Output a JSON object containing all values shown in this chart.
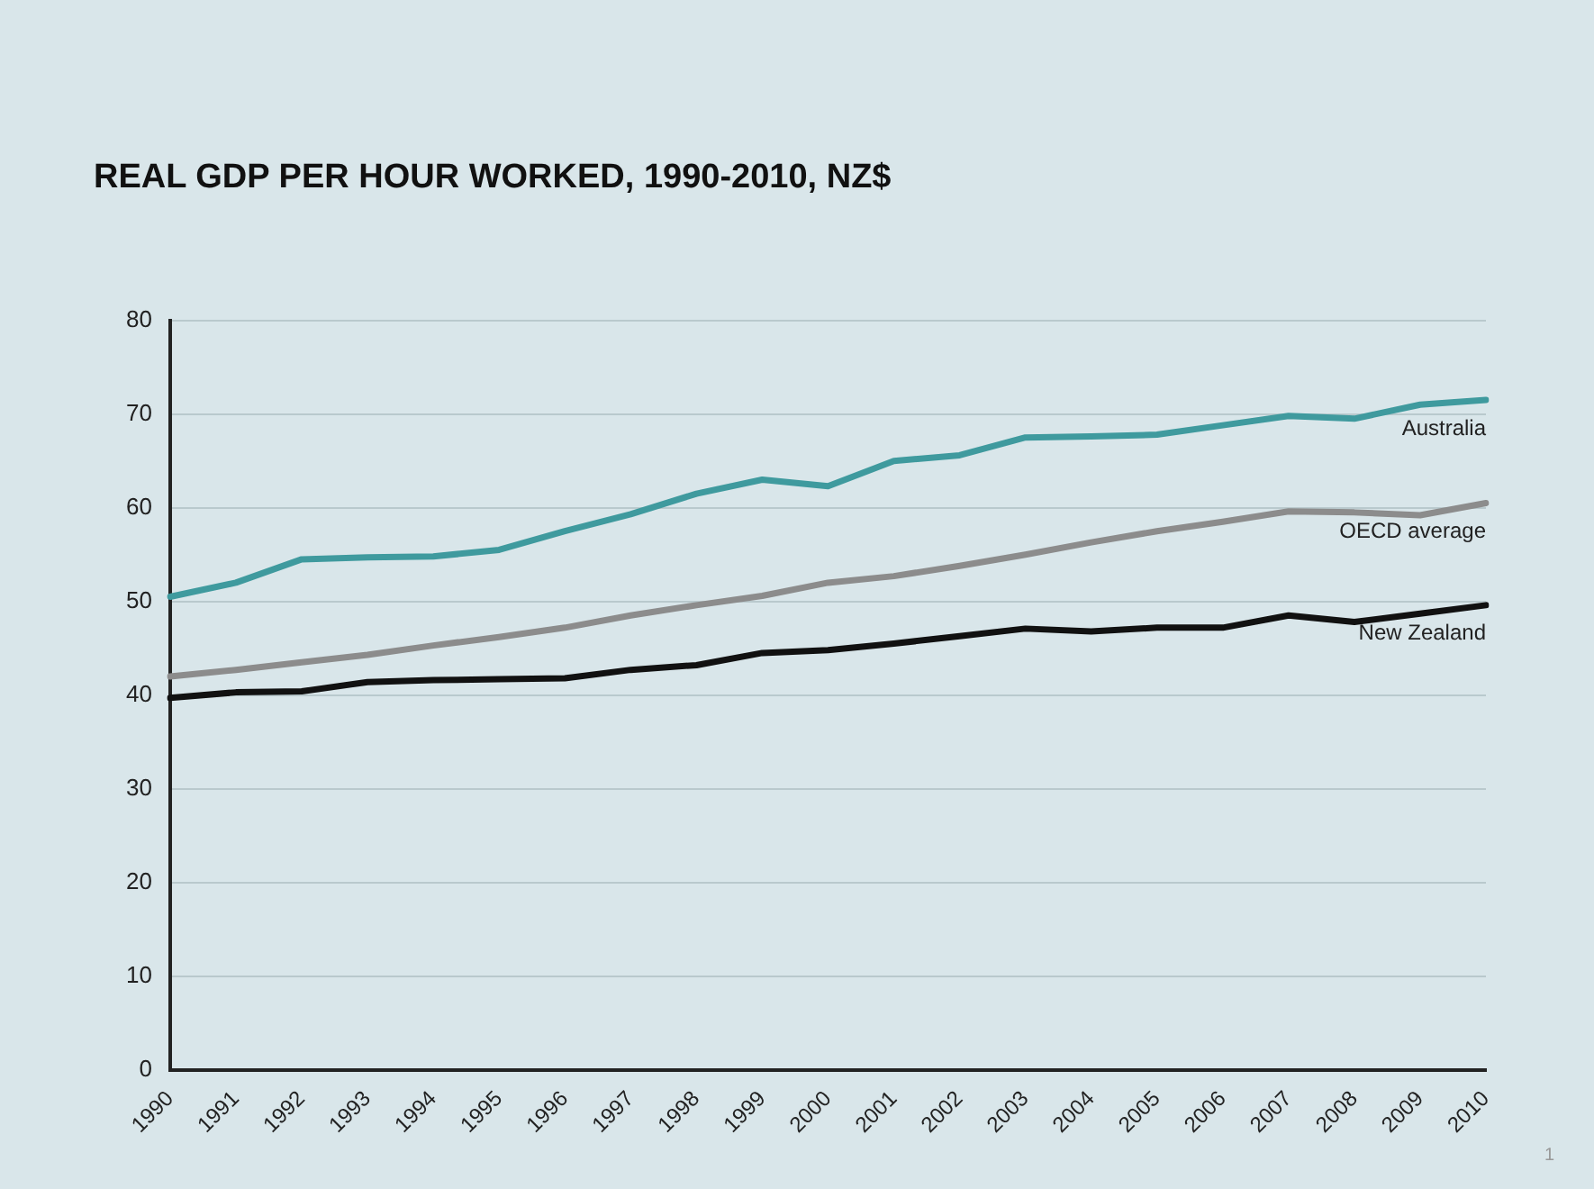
{
  "chart_data": {
    "type": "line",
    "title": "REAL GDP PER HOUR WORKED, 1990-2010, NZ$",
    "categories": [
      "1990",
      "1991",
      "1992",
      "1993",
      "1994",
      "1995",
      "1996",
      "1997",
      "1998",
      "1999",
      "2000",
      "2001",
      "2002",
      "2003",
      "2004",
      "2005",
      "2006",
      "2007",
      "2008",
      "2009",
      "2010"
    ],
    "series": [
      {
        "name": "Australia",
        "color": "#3f9a9e",
        "values": [
          50.5,
          52,
          54.5,
          54.7,
          54.8,
          55.5,
          57.5,
          59.3,
          61.5,
          63,
          62.3,
          65,
          65.6,
          67.5,
          67.6,
          67.8,
          68.8,
          69.8,
          69.5,
          71,
          71.5
        ]
      },
      {
        "name": "OECD average",
        "color": "#8c8c8c",
        "values": [
          42,
          42.7,
          43.5,
          44.3,
          45.3,
          46.2,
          47.2,
          48.5,
          49.6,
          50.6,
          52,
          52.7,
          53.8,
          55,
          56.3,
          57.5,
          58.5,
          59.6,
          59.5,
          59.2,
          60.5
        ]
      },
      {
        "name": "New Zealand",
        "color": "#111111",
        "values": [
          39.7,
          40.3,
          40.4,
          41.4,
          41.6,
          41.7,
          41.8,
          42.7,
          43.2,
          44.5,
          44.8,
          45.5,
          46.3,
          47.1,
          46.8,
          47.2,
          47.2,
          48.5,
          47.8,
          48.7,
          49.6
        ]
      }
    ],
    "ylim": [
      0,
      80
    ],
    "yticks": [
      0,
      10,
      20,
      30,
      40,
      50,
      60,
      70,
      80
    ],
    "grid": "y",
    "legend": false,
    "marker": "none",
    "line_style": "solid",
    "annotations": [
      "1"
    ]
  }
}
